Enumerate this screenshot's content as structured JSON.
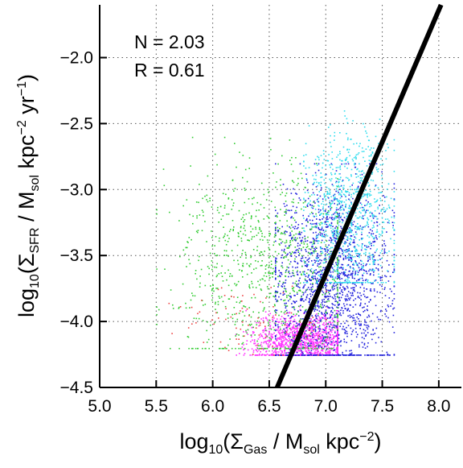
{
  "chart_data": {
    "type": "scatter",
    "title": "",
    "xlabel": {
      "prefix": "log",
      "prefix_sub": "10",
      "open": "(Σ",
      "sub": "Gas",
      "middle": " / M",
      "sub2": "sol",
      "suffix": " kpc",
      "sup": "−2",
      "close": ")"
    },
    "ylabel": {
      "prefix": "log",
      "prefix_sub": "10",
      "open": "(Σ",
      "sub": "SFR",
      "middle": " / M",
      "sub2": "sol",
      "suffix": " kpc",
      "sup": "−2",
      "mid2": " yr",
      "sup2": "−1",
      "close": ")"
    },
    "xlim": [
      5.0,
      8.2
    ],
    "ylim": [
      -4.5,
      -1.6
    ],
    "xticks": [
      5.0,
      5.5,
      6.0,
      6.5,
      7.0,
      7.5,
      8.0
    ],
    "xtick_labels": [
      "5.0",
      "5.5",
      "6.0",
      "6.5",
      "7.0",
      "7.5",
      "8.0"
    ],
    "yticks": [
      -4.5,
      -4.0,
      -3.5,
      -3.0,
      -2.5,
      -2.0
    ],
    "ytick_labels": [
      "−4.5",
      "−4.0",
      "−3.5",
      "−3.0",
      "−2.5",
      "−2.0"
    ],
    "grid": true,
    "annotations": [
      "N = 2.03",
      "R = 0.61"
    ],
    "fit_line": {
      "slope": 2.03,
      "points": [
        [
          6.57,
          -4.5
        ],
        [
          8.02,
          -1.6
        ]
      ],
      "color": "#000000"
    },
    "series": [
      {
        "color": "#ff33ff",
        "x_range": [
          6.2,
          7.1
        ],
        "y_range": [
          -4.25,
          -3.85
        ],
        "count": 1300,
        "x_center": 6.8,
        "y_center": -4.15
      },
      {
        "color": "#2222dd",
        "x_range": [
          6.55,
          7.6
        ],
        "y_range": [
          -4.25,
          -2.8
        ],
        "count": 1700,
        "x_center": 7.05,
        "y_center": -3.7
      },
      {
        "color": "#33cc33",
        "x_range": [
          5.5,
          7.1
        ],
        "y_range": [
          -4.2,
          -2.6
        ],
        "count": 900,
        "x_center": 6.5,
        "y_center": -3.6
      },
      {
        "color": "#33ddee",
        "x_range": [
          6.8,
          7.6
        ],
        "y_range": [
          -3.7,
          -2.4
        ],
        "count": 900,
        "x_center": 7.2,
        "y_center": -3.2
      },
      {
        "color": "#ee4444",
        "x_range": [
          5.6,
          7.0
        ],
        "y_range": [
          -4.25,
          -3.6
        ],
        "count": 90,
        "x_center": 6.4,
        "y_center": -4.0
      }
    ]
  }
}
